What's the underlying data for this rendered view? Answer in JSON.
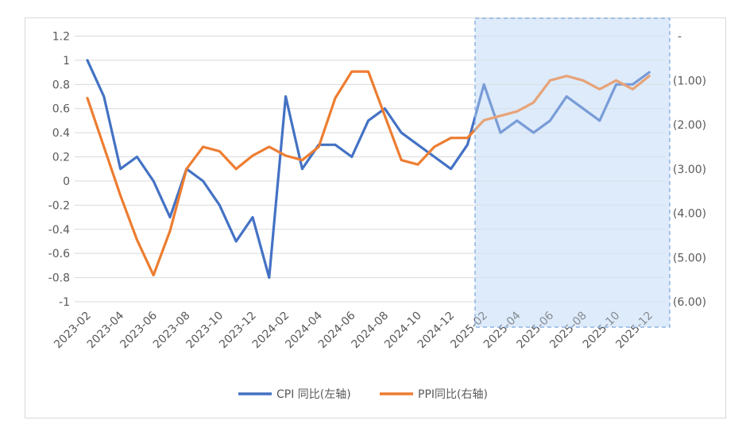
{
  "chart_data": {
    "type": "line",
    "categories": [
      "2023-02",
      "2023-03",
      "2023-04",
      "2023-05",
      "2023-06",
      "2023-07",
      "2023-08",
      "2023-09",
      "2023-10",
      "2023-11",
      "2023-12",
      "2024-01",
      "2024-02",
      "2024-03",
      "2024-04",
      "2024-05",
      "2024-06",
      "2024-07",
      "2024-08",
      "2024-09",
      "2024-10",
      "2024-11",
      "2024-12",
      "2025-01",
      "2025-02",
      "2025-03",
      "2025-04",
      "2025-05",
      "2025-06",
      "2025-07",
      "2025-08",
      "2025-09",
      "2025-10",
      "2025-11",
      "2025-12"
    ],
    "x_tick_labels": [
      "2023-02",
      "2023-04",
      "2023-06",
      "2023-08",
      "2023-10",
      "2023-12",
      "2024-02",
      "2024-04",
      "2024-06",
      "2024-08",
      "2024-10",
      "2024-12",
      "2025-02",
      "2025-04",
      "2025-06",
      "2025-08",
      "2025-10",
      "2025-12"
    ],
    "series": [
      {
        "name": "CPI 同比(左轴)",
        "axis": "left",
        "color": "#4472c4",
        "values": [
          1.0,
          0.7,
          0.1,
          0.2,
          0.0,
          -0.3,
          0.1,
          0.0,
          -0.2,
          -0.5,
          -0.3,
          -0.8,
          0.7,
          0.1,
          0.3,
          0.3,
          0.2,
          0.5,
          0.6,
          0.4,
          0.3,
          0.2,
          0.1,
          0.3,
          0.8,
          0.4,
          0.5,
          0.4,
          0.5,
          0.7,
          0.6,
          0.5,
          0.8,
          0.8,
          0.9
        ]
      },
      {
        "name": "PPI同比(右轴)",
        "axis": "right",
        "color": "#ed7d31",
        "values": [
          -1.4,
          -2.5,
          -3.6,
          -4.6,
          -5.4,
          -4.4,
          -3.0,
          -2.5,
          -2.6,
          -3.0,
          -2.7,
          -2.5,
          -2.7,
          -2.8,
          -2.5,
          -1.4,
          -0.8,
          -0.8,
          -1.8,
          -2.8,
          -2.9,
          -2.5,
          -2.3,
          -2.3,
          -1.9,
          -1.8,
          -1.7,
          -1.5,
          -1.0,
          -0.9,
          -1.0,
          -1.2,
          -1.0,
          -1.2,
          -0.9
        ]
      }
    ],
    "y_left": {
      "min": -1,
      "max": 1.2,
      "step": 0.2,
      "tick_labels": [
        "1.2",
        "1",
        "0.8",
        "0.6",
        "0.4",
        "0.2",
        "0",
        "-0.2",
        "-0.4",
        "-0.6",
        "-0.8",
        "-1"
      ]
    },
    "y_right": {
      "min": -6,
      "max": 0,
      "step": 1,
      "tick_labels": [
        "-",
        "(1.00)",
        "(2.00)",
        "(3.00)",
        "(4.00)",
        "(5.00)",
        "(6.00)"
      ]
    },
    "highlight_region": {
      "from": "2025-02",
      "to": "2025-12",
      "fill": "#deebfb",
      "border": "#8fb4e3"
    },
    "grid": true,
    "legend_position": "bottom-center"
  }
}
